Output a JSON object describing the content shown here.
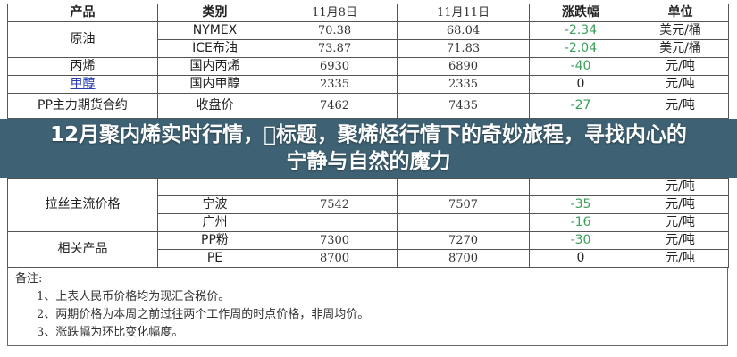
{
  "table": {
    "headers": [
      "产品",
      "类别",
      "11月8日",
      "11月11日",
      "涨跌幅",
      "单位"
    ],
    "rows": [
      {
        "product": "原油",
        "type": "NYMEX",
        "d1": "70.38",
        "d2": "68.04",
        "chg": "-2.34",
        "unit": "美元/桶"
      },
      {
        "type": "ICE布油",
        "d1": "73.87",
        "d2": "71.83",
        "chg": "-2.04",
        "unit": "美元/桶"
      },
      {
        "product": "丙烯",
        "type": "国内丙烯",
        "d1": "6930",
        "d2": "6890",
        "chg": "-40",
        "unit": "元/吨"
      },
      {
        "product": "甲醇",
        "type": "国内甲醇",
        "d1": "2335",
        "d2": "2335",
        "chg": "0",
        "unit": "元/吨"
      },
      {
        "product": "PP主力期货合约",
        "type": "收盘价",
        "d1": "7462",
        "d2": "7435",
        "chg": "-27",
        "unit": "元/吨"
      },
      {
        "product": "拉丝主流价格",
        "type": "",
        "d1": "",
        "d2": "",
        "chg": "",
        "unit": "元/吨"
      },
      {
        "type": "宁波",
        "d1": "7542",
        "d2": "7507",
        "chg": "-35",
        "unit": "元/吨"
      },
      {
        "type": "广州",
        "d1": "",
        "d2": "",
        "chg": "-16",
        "unit": "元/吨"
      },
      {
        "product": "相关产品",
        "type": "PP粉",
        "d1": "7300",
        "d2": "7270",
        "chg": "-30",
        "unit": "元/吨"
      },
      {
        "type": "PE",
        "d1": "8700",
        "d2": "8700",
        "chg": "0",
        "unit": "元/吨"
      }
    ]
  },
  "notes": {
    "heading": "备注:",
    "items": [
      "1、上表人民币价格均为现汇含税价。",
      "2、两期价格为本周之前过往两个工作周的时点价格，非周均价。",
      "3、涨跌幅为环比变化幅度。"
    ]
  },
  "overlay_title": "12月聚内烯实时行情，\u0000标题，聚烯烃行情下的奇妙旅程，寻找内心的宁静与自然的魔力",
  "colors": {
    "overlay": "#3e6274",
    "negative": "#3aa05a",
    "link": "#2a3fb0"
  }
}
